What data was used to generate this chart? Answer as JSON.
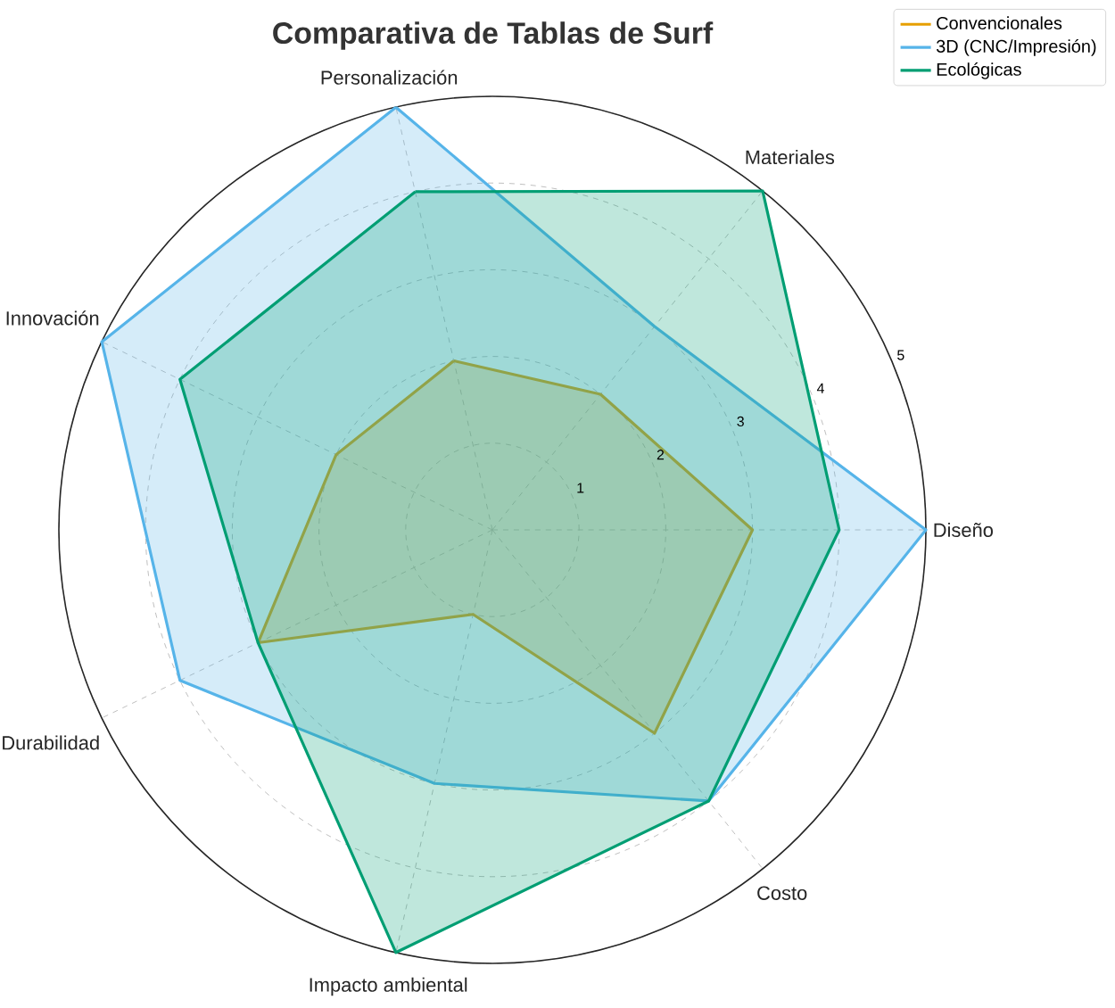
{
  "chart_data": {
    "type": "radar",
    "title": "Comparativa de Tablas de Surf",
    "categories": [
      "Personalización",
      "Materiales",
      "Diseño",
      "Costo",
      "Impacto ambiental",
      "Durabilidad",
      "Innovación"
    ],
    "series": [
      {
        "name": "Convencionales",
        "color": "#e69f00",
        "values": [
          2,
          2,
          3,
          3,
          1,
          3,
          2
        ]
      },
      {
        "name": "3D (CNC/Impresión)",
        "color": "#56b4e9",
        "values": [
          5,
          3,
          5,
          4,
          3,
          4,
          5
        ]
      },
      {
        "name": "Ecológicas",
        "color": "#009e73",
        "values": [
          4,
          5,
          4,
          4,
          5,
          3,
          4
        ]
      }
    ],
    "ylim": [
      0,
      5
    ],
    "yticks": [
      1,
      2,
      3,
      4,
      5
    ],
    "grid": true,
    "legend": "top right"
  }
}
